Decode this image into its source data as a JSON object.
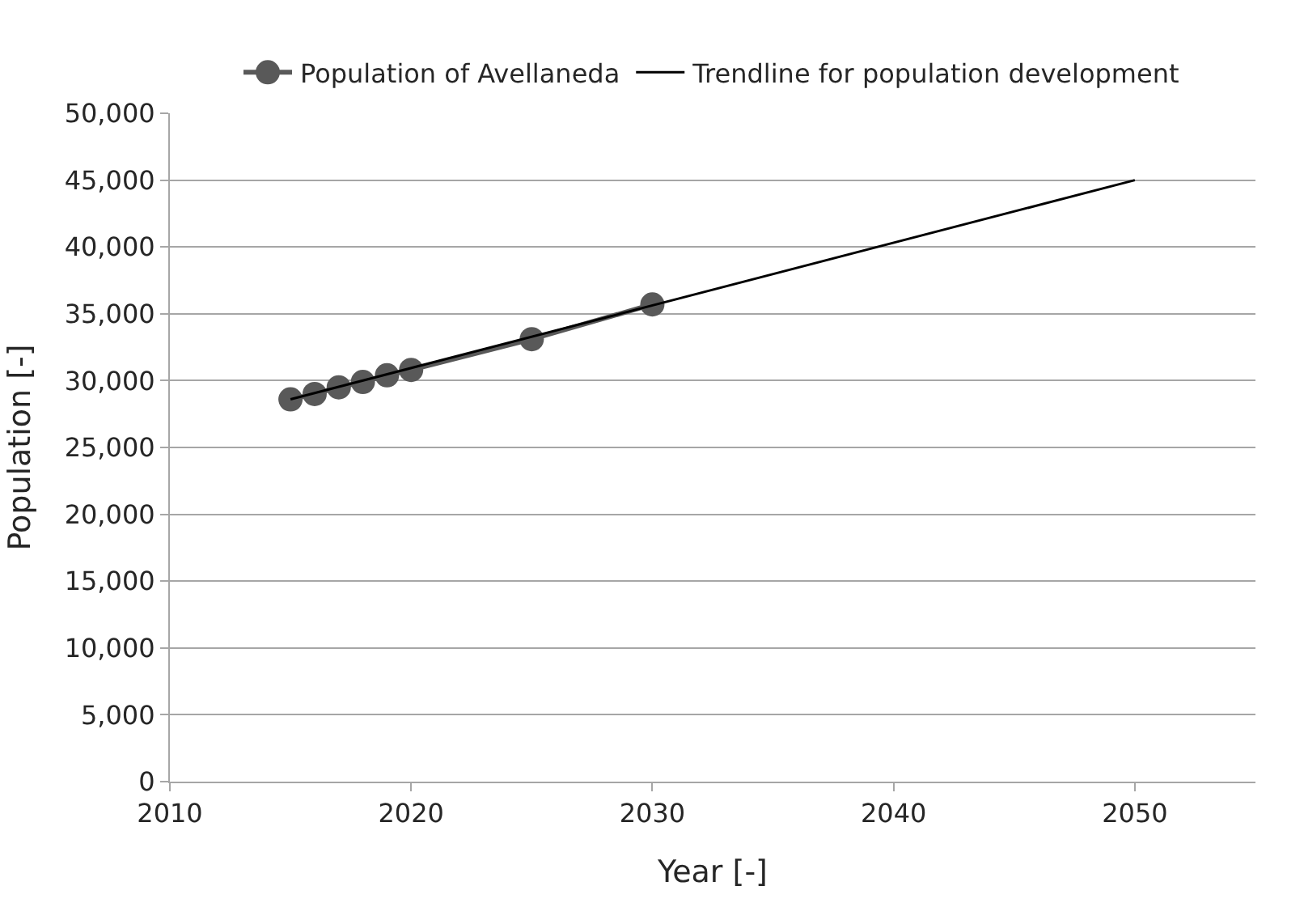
{
  "chart_data": {
    "type": "line",
    "xlabel": "Year [-]",
    "ylabel": "Population [-]",
    "series": [
      {
        "name": "Population of Avellaneda",
        "color": "#595959",
        "marker": "circle",
        "x": [
          2015,
          2016,
          2017,
          2018,
          2019,
          2020,
          2025,
          2030
        ],
        "values": [
          28600,
          29000,
          29500,
          29900,
          30400,
          30800,
          33100,
          35700
        ]
      },
      {
        "name": "Trendline for population development",
        "color": "#000000",
        "marker": "none",
        "x": [
          2015,
          2050
        ],
        "values": [
          28600,
          45000
        ]
      }
    ],
    "xlim": [
      2010,
      2055
    ],
    "xticks": [
      2010,
      2020,
      2030,
      2040,
      2050
    ],
    "ylim": [
      0,
      50000
    ],
    "yticks": [
      {
        "value": 0,
        "label": "0"
      },
      {
        "value": 5000,
        "label": "5,000"
      },
      {
        "value": 10000,
        "label": "10,000"
      },
      {
        "value": 15000,
        "label": "15,000"
      },
      {
        "value": 20000,
        "label": "20,000"
      },
      {
        "value": 25000,
        "label": "25,000"
      },
      {
        "value": 30000,
        "label": "30,000"
      },
      {
        "value": 35000,
        "label": "35,000"
      },
      {
        "value": 40000,
        "label": "40,000"
      },
      {
        "value": 45000,
        "label": "45,000"
      },
      {
        "value": 50000,
        "label": "50,000"
      }
    ],
    "grid": "y",
    "legend": "top"
  }
}
